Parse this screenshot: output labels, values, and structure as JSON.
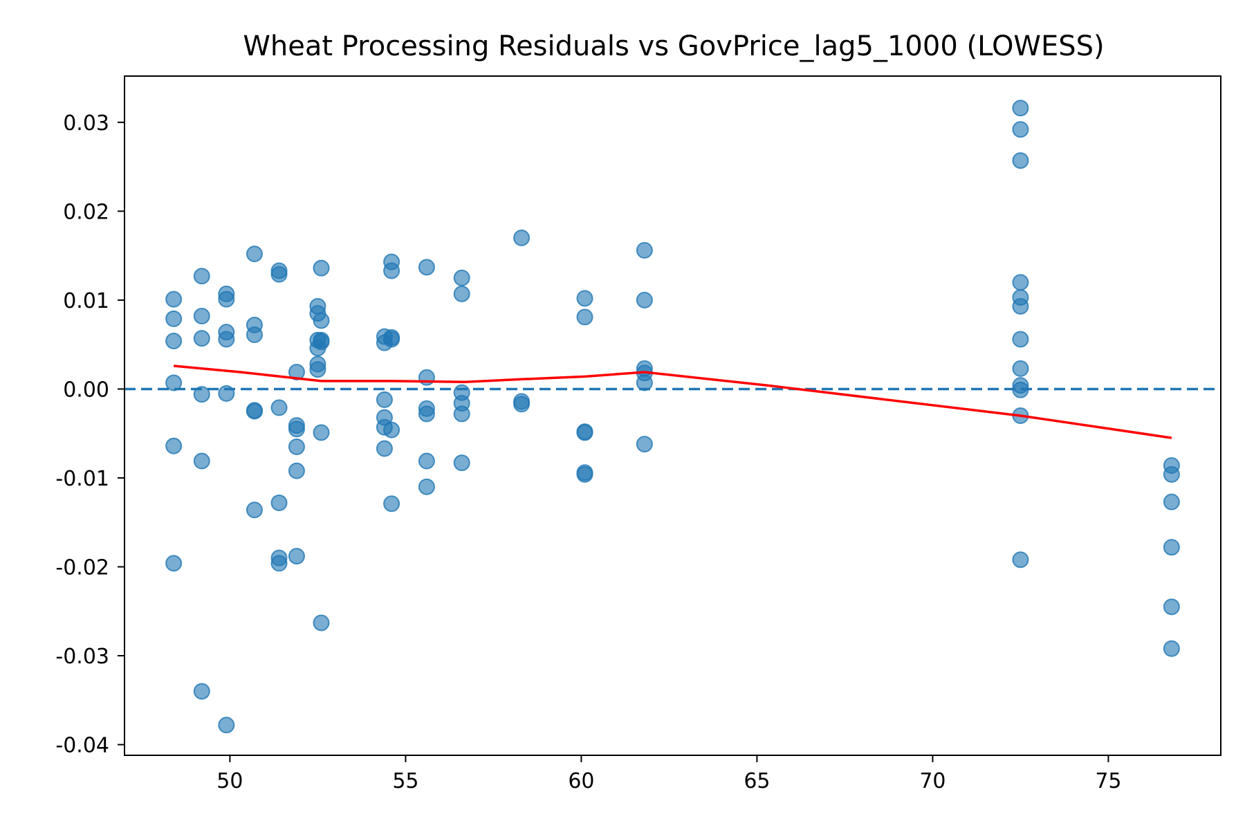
{
  "chart_data": {
    "type": "scatter",
    "title": "Wheat Processing Residuals vs GovPrice_lag5_1000 (LOWESS)",
    "xlabel": "",
    "ylabel": "",
    "xlim": [
      47.0,
      78.2
    ],
    "ylim": [
      -0.0412,
      0.0352
    ],
    "x_ticks": [
      50,
      55,
      60,
      65,
      70,
      75
    ],
    "x_tick_labels": [
      "50",
      "55",
      "60",
      "65",
      "70",
      "75"
    ],
    "y_ticks": [
      0.03,
      0.02,
      0.01,
      0.0,
      -0.01,
      -0.02,
      -0.03,
      -0.04
    ],
    "y_tick_labels": [
      "0.03",
      "0.02",
      "0.01",
      "0.00",
      "-0.01",
      "-0.02",
      "-0.03",
      "-0.04"
    ],
    "grid": false,
    "colors": {
      "points": "#1f77b4",
      "zero_line": "#1f77b4",
      "lowess": "#ff0000"
    },
    "points": [
      [
        48.4,
        0.0101
      ],
      [
        48.4,
        0.0079
      ],
      [
        48.4,
        0.0054
      ],
      [
        48.4,
        0.0007
      ],
      [
        48.4,
        -0.0064
      ],
      [
        48.4,
        -0.0196
      ],
      [
        49.2,
        0.0127
      ],
      [
        49.2,
        0.0082
      ],
      [
        49.2,
        0.0057
      ],
      [
        49.2,
        -0.0006
      ],
      [
        49.2,
        -0.0081
      ],
      [
        49.2,
        -0.034
      ],
      [
        49.9,
        0.0107
      ],
      [
        49.9,
        0.0101
      ],
      [
        49.9,
        0.0064
      ],
      [
        49.9,
        0.0056
      ],
      [
        49.9,
        -0.0005
      ],
      [
        49.9,
        -0.0378
      ],
      [
        50.7,
        0.0152
      ],
      [
        50.7,
        0.0072
      ],
      [
        50.7,
        0.0061
      ],
      [
        50.7,
        -0.0024
      ],
      [
        50.7,
        -0.0025
      ],
      [
        50.7,
        -0.0136
      ],
      [
        51.4,
        0.0133
      ],
      [
        51.4,
        0.0129
      ],
      [
        51.4,
        -0.0021
      ],
      [
        51.4,
        -0.0128
      ],
      [
        51.4,
        -0.019
      ],
      [
        51.4,
        -0.0196
      ],
      [
        51.9,
        0.0019
      ],
      [
        51.9,
        -0.0041
      ],
      [
        51.9,
        -0.0045
      ],
      [
        51.9,
        -0.0065
      ],
      [
        51.9,
        -0.0092
      ],
      [
        51.9,
        -0.0188
      ],
      [
        52.5,
        0.0093
      ],
      [
        52.5,
        0.0085
      ],
      [
        52.5,
        0.0055
      ],
      [
        52.5,
        0.0046
      ],
      [
        52.5,
        0.0028
      ],
      [
        52.5,
        0.0022
      ],
      [
        52.6,
        0.0136
      ],
      [
        52.6,
        0.0077
      ],
      [
        52.6,
        0.0055
      ],
      [
        52.6,
        0.0053
      ],
      [
        52.6,
        -0.0049
      ],
      [
        52.6,
        -0.0263
      ],
      [
        54.4,
        0.0059
      ],
      [
        54.4,
        0.0052
      ],
      [
        54.4,
        -0.0012
      ],
      [
        54.4,
        -0.0032
      ],
      [
        54.4,
        -0.0043
      ],
      [
        54.4,
        -0.0067
      ],
      [
        54.6,
        0.0143
      ],
      [
        54.6,
        0.0133
      ],
      [
        54.6,
        0.0058
      ],
      [
        54.6,
        0.0056
      ],
      [
        54.6,
        -0.0046
      ],
      [
        54.6,
        -0.0129
      ],
      [
        55.6,
        0.0137
      ],
      [
        55.6,
        0.0013
      ],
      [
        55.6,
        -0.0022
      ],
      [
        55.6,
        -0.0028
      ],
      [
        55.6,
        -0.0081
      ],
      [
        55.6,
        -0.011
      ],
      [
        56.6,
        0.0125
      ],
      [
        56.6,
        0.0107
      ],
      [
        56.6,
        -0.0004
      ],
      [
        56.6,
        -0.0016
      ],
      [
        56.6,
        -0.0028
      ],
      [
        56.6,
        -0.0083
      ],
      [
        58.3,
        0.017
      ],
      [
        58.3,
        -0.0014
      ],
      [
        58.3,
        -0.0017
      ],
      [
        60.1,
        0.0102
      ],
      [
        60.1,
        0.0081
      ],
      [
        60.1,
        -0.0048
      ],
      [
        60.1,
        -0.0049
      ],
      [
        60.1,
        -0.0094
      ],
      [
        60.1,
        -0.0096
      ],
      [
        61.8,
        0.0156
      ],
      [
        61.8,
        0.01
      ],
      [
        61.8,
        0.0023
      ],
      [
        61.8,
        0.0018
      ],
      [
        61.8,
        0.0007
      ],
      [
        61.8,
        -0.0062
      ],
      [
        72.5,
        0.0316
      ],
      [
        72.5,
        0.0292
      ],
      [
        72.5,
        0.0257
      ],
      [
        72.5,
        0.012
      ],
      [
        72.5,
        0.0103
      ],
      [
        72.5,
        0.0093
      ],
      [
        72.5,
        0.0056
      ],
      [
        72.5,
        0.0023
      ],
      [
        72.5,
        0.0004
      ],
      [
        72.5,
        -0.0001
      ],
      [
        72.5,
        -0.003
      ],
      [
        72.5,
        -0.0192
      ],
      [
        76.8,
        -0.0086
      ],
      [
        76.8,
        -0.0096
      ],
      [
        76.8,
        -0.0127
      ],
      [
        76.8,
        -0.0178
      ],
      [
        76.8,
        -0.0245
      ],
      [
        76.8,
        -0.0292
      ]
    ],
    "lowess": [
      [
        48.4,
        0.0026
      ],
      [
        50.3,
        0.0019
      ],
      [
        52.6,
        0.0009
      ],
      [
        54.6,
        0.0009
      ],
      [
        56.7,
        0.0008
      ],
      [
        58.3,
        0.0011
      ],
      [
        60.1,
        0.0014
      ],
      [
        61.8,
        0.0019
      ],
      [
        65.3,
        0.0004
      ],
      [
        72.5,
        -0.003
      ],
      [
        76.8,
        -0.0055
      ]
    ],
    "reference_line_y": 0.0
  }
}
